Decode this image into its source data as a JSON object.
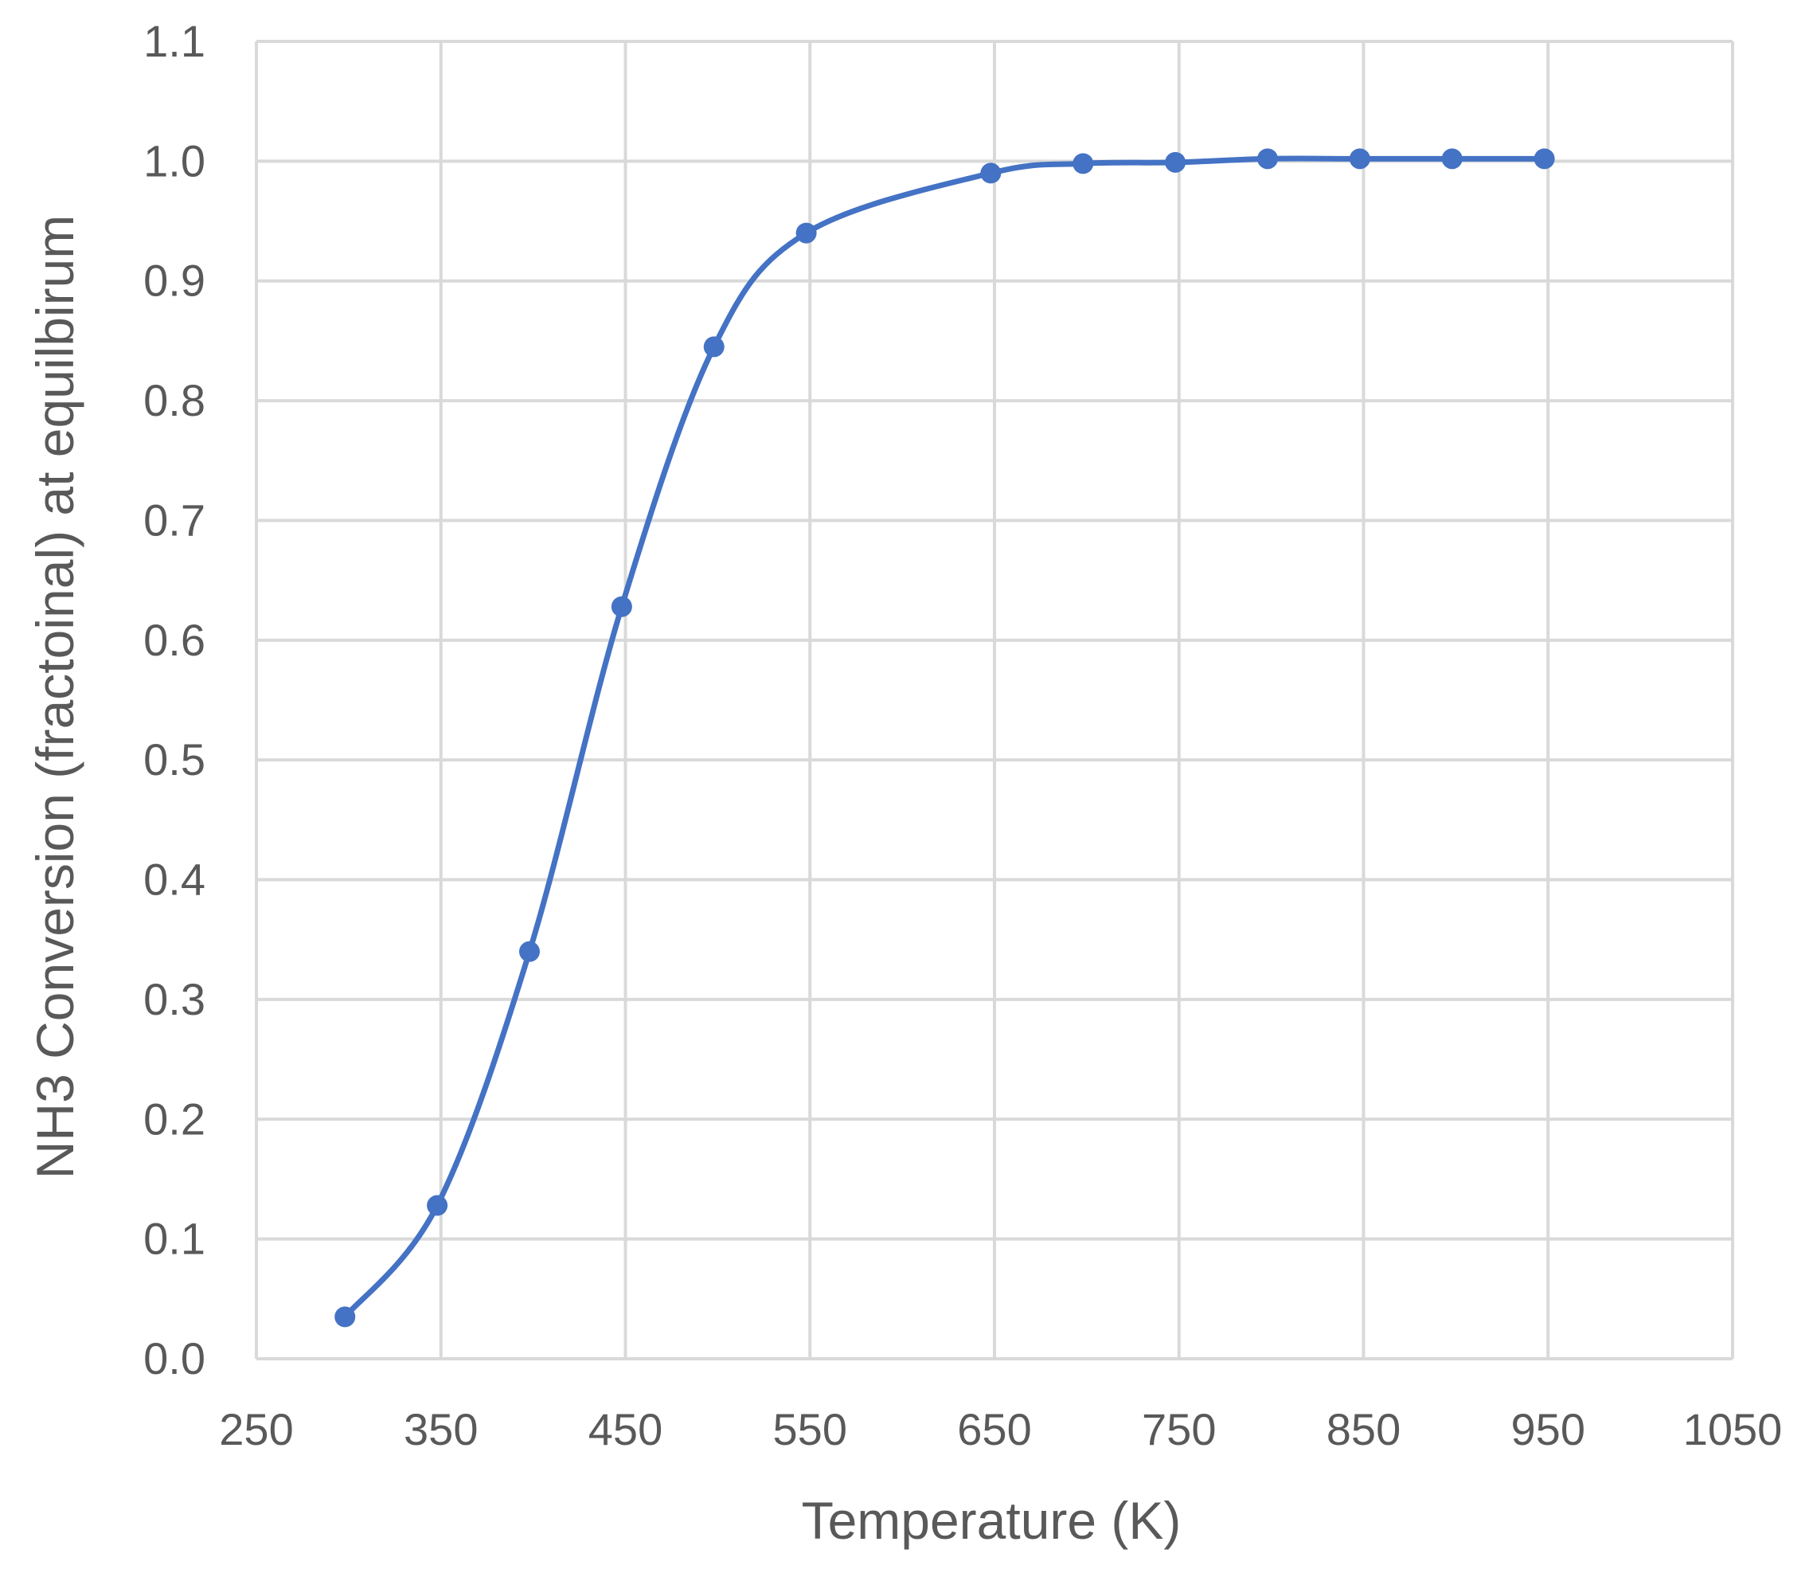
{
  "chart_data": {
    "type": "scatter",
    "title": "",
    "xlabel": "Temperature (K)",
    "ylabel": "NH3 Conversion (fractoinal) at equilbirum",
    "xlim": [
      250,
      1050
    ],
    "ylim": [
      0.0,
      1.1
    ],
    "x_ticks": [
      250,
      350,
      450,
      550,
      650,
      750,
      850,
      950,
      1050
    ],
    "x_tick_labels": [
      "250",
      "350",
      "450",
      "550",
      "650",
      "750",
      "850",
      "950",
      "1050"
    ],
    "y_ticks": [
      0.0,
      0.1,
      0.2,
      0.3,
      0.4,
      0.5,
      0.6,
      0.7,
      0.8,
      0.9,
      1.0,
      1.1
    ],
    "y_tick_labels": [
      "0.0",
      "0.1",
      "0.2",
      "0.3",
      "0.4",
      "0.5",
      "0.6",
      "0.7",
      "0.8",
      "0.9",
      "1.0",
      "1.1"
    ],
    "grid": true,
    "legend": "none",
    "smooth_line": true,
    "series": [
      {
        "x": [
          298,
          348,
          398,
          448,
          498,
          548,
          648,
          698,
          748,
          798,
          848,
          898,
          948
        ],
        "y": [
          0.035,
          0.128,
          0.34,
          0.628,
          0.845,
          0.94,
          0.99,
          0.998,
          0.999,
          1.002,
          1.002,
          1.002,
          1.002
        ],
        "color": "#4472C4"
      }
    ],
    "colors": {
      "grid": "#D9D9D9",
      "text": "#595959",
      "series": "#4472C4"
    }
  }
}
